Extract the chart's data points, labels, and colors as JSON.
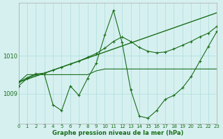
{
  "title": "Graphe pression niveau de la mer (hPa)",
  "bg_color": "#d6f0f0",
  "grid_color": "#aadddd",
  "line_color": "#1a6e1a",
  "xlim": [
    0,
    23
  ],
  "ylim": [
    1008.2,
    1011.4
  ],
  "yticks": [
    1009,
    1010
  ],
  "xticks": [
    0,
    1,
    2,
    3,
    4,
    5,
    6,
    7,
    8,
    9,
    10,
    11,
    12,
    13,
    14,
    15,
    16,
    17,
    18,
    19,
    20,
    21,
    22,
    23
  ],
  "series1": [
    1009.3,
    1009.5,
    1009.5,
    1009.5,
    1009.5,
    1009.5,
    1009.5,
    1009.5,
    1009.5,
    1009.6,
    1009.65,
    1009.65,
    1009.65,
    1009.65,
    1009.65,
    1009.65,
    1009.65,
    1009.65,
    1009.65,
    1009.65,
    1009.65,
    1009.65,
    1009.65,
    1009.65
  ],
  "series2": [
    1009.2,
    1009.4,
    1009.5,
    1009.5,
    1008.7,
    1008.55,
    1009.2,
    1008.95,
    1009.4,
    1009.8,
    1010.55,
    1011.2,
    1010.35,
    1009.1,
    1008.4,
    1008.35,
    1008.55,
    1008.85,
    1008.95,
    1009.15,
    1009.45,
    1009.85,
    1010.25,
    1010.65
  ],
  "series3": [
    1009.3,
    1009.38,
    1009.46,
    1009.54,
    1009.62,
    1009.7,
    1009.78,
    1009.86,
    1009.94,
    1010.02,
    1010.1,
    1010.18,
    1010.26,
    1010.34,
    1010.42,
    1010.5,
    1010.58,
    1010.66,
    1010.74,
    1010.82,
    1010.9,
    1010.98,
    1011.06,
    1011.14
  ],
  "series4": [
    1009.3,
    1009.42,
    1009.52,
    1009.54,
    1009.62,
    1009.7,
    1009.78,
    1009.86,
    1009.96,
    1010.06,
    1010.2,
    1010.38,
    1010.5,
    1010.38,
    1010.22,
    1010.12,
    1010.08,
    1010.1,
    1010.18,
    1010.28,
    1010.38,
    1010.5,
    1010.6,
    1010.78
  ]
}
